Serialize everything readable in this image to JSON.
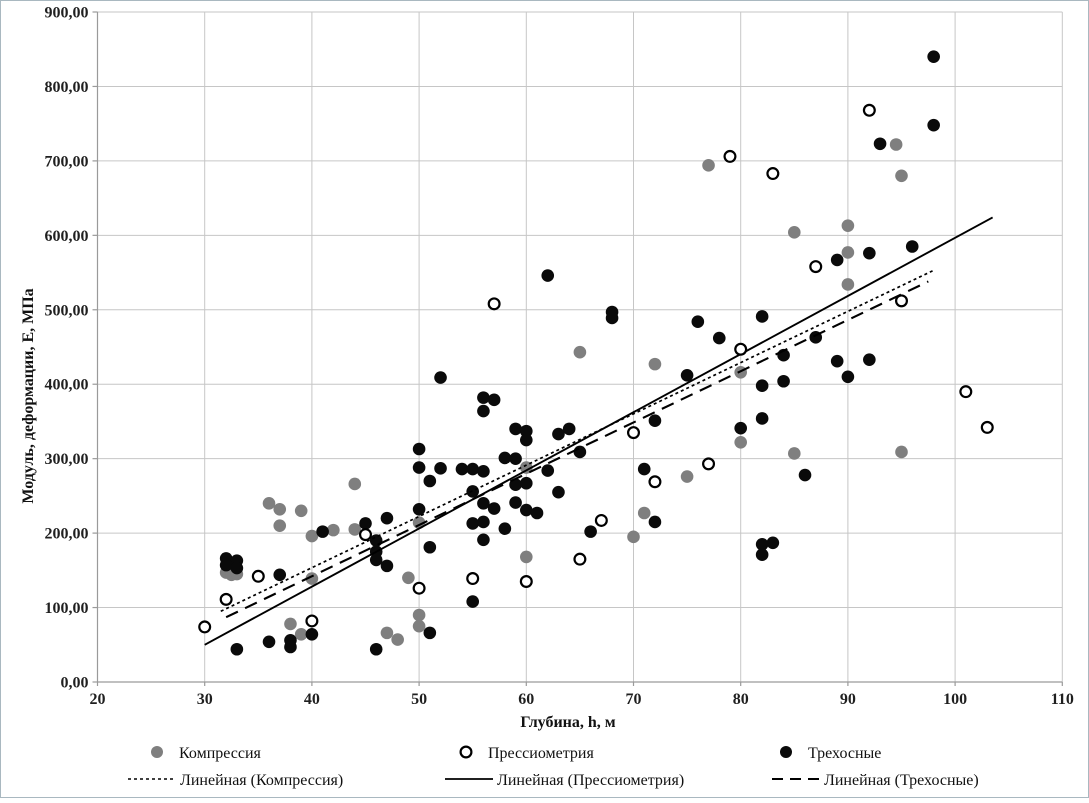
{
  "chart_data": {
    "type": "scatter",
    "title": "",
    "xlabel": "Глубина, h, м",
    "ylabel": "Модуль, деформации, Е, МПа",
    "xlim": [
      20,
      110
    ],
    "ylim": [
      0,
      900
    ],
    "xticks": [
      20,
      30,
      40,
      50,
      60,
      70,
      80,
      90,
      100,
      110
    ],
    "ytick_values": [
      0,
      100,
      200,
      300,
      400,
      500,
      600,
      700,
      800,
      900
    ],
    "ytick_labels": [
      "0,00",
      "100,00",
      "200,00",
      "300,00",
      "400,00",
      "500,00",
      "600,00",
      "700,00",
      "800,00",
      "900,00"
    ],
    "grid": true,
    "legend_position": "bottom",
    "colors": {
      "gray_series": "#7f7f7f",
      "black_series": "#0a0a0a",
      "open_marker_stroke": "#000000",
      "gridline": "#c6c6c6",
      "axis_line": "#9a9a9a",
      "text": "#1f1f1f",
      "page_border": "#a9b8c0"
    },
    "series": [
      {
        "name": "Компрессия",
        "marker": "filled-circle",
        "color": "#7f7f7f",
        "points": [
          [
            32,
            147
          ],
          [
            32.5,
            144
          ],
          [
            33,
            145
          ],
          [
            36,
            240
          ],
          [
            37,
            232
          ],
          [
            39,
            230
          ],
          [
            37,
            210
          ],
          [
            40,
            196
          ],
          [
            42,
            204
          ],
          [
            44,
            205
          ],
          [
            44,
            266
          ],
          [
            38,
            78
          ],
          [
            39,
            64
          ],
          [
            40,
            139
          ],
          [
            47,
            66
          ],
          [
            48,
            57
          ],
          [
            49,
            140
          ],
          [
            50,
            90
          ],
          [
            50,
            75
          ],
          [
            50,
            214
          ],
          [
            60,
            288
          ],
          [
            60,
            168
          ],
          [
            65,
            443
          ],
          [
            70,
            195
          ],
          [
            71,
            227
          ],
          [
            72,
            427
          ],
          [
            75,
            276
          ],
          [
            77,
            694
          ],
          [
            80,
            416
          ],
          [
            80,
            322
          ],
          [
            85,
            307
          ],
          [
            85,
            604
          ],
          [
            90,
            613
          ],
          [
            90,
            577
          ],
          [
            90,
            534
          ],
          [
            94.5,
            722
          ],
          [
            95,
            680
          ],
          [
            95,
            309
          ]
        ]
      },
      {
        "name": "Прессиометрия",
        "marker": "open-circle",
        "color": "#000000",
        "points": [
          [
            30,
            74
          ],
          [
            32,
            111
          ],
          [
            35,
            142
          ],
          [
            40,
            82
          ],
          [
            45,
            198
          ],
          [
            50,
            126
          ],
          [
            55,
            139
          ],
          [
            57,
            508
          ],
          [
            60,
            135
          ],
          [
            65,
            165
          ],
          [
            67,
            217
          ],
          [
            70,
            335
          ],
          [
            72,
            269
          ],
          [
            77,
            293
          ],
          [
            79,
            706
          ],
          [
            80,
            447
          ],
          [
            83,
            683
          ],
          [
            87,
            558
          ],
          [
            92,
            768
          ],
          [
            95,
            512
          ],
          [
            101,
            390
          ],
          [
            103,
            342
          ]
        ]
      },
      {
        "name": "Трехосные",
        "marker": "filled-circle",
        "color": "#0a0a0a",
        "points": [
          [
            32,
            166
          ],
          [
            33,
            163
          ],
          [
            32,
            157
          ],
          [
            33,
            153
          ],
          [
            33,
            44
          ],
          [
            36,
            54
          ],
          [
            37,
            144
          ],
          [
            38,
            56
          ],
          [
            38,
            47
          ],
          [
            40,
            64
          ],
          [
            41,
            202
          ],
          [
            45,
            213
          ],
          [
            46,
            190
          ],
          [
            46,
            175
          ],
          [
            46,
            164
          ],
          [
            47,
            156
          ],
          [
            47,
            220
          ],
          [
            46,
            44
          ],
          [
            50,
            232
          ],
          [
            50,
            288
          ],
          [
            50,
            313
          ],
          [
            51,
            270
          ],
          [
            51,
            181
          ],
          [
            51,
            66
          ],
          [
            52,
            287
          ],
          [
            52,
            409
          ],
          [
            54,
            286
          ],
          [
            55,
            286
          ],
          [
            56,
            283
          ],
          [
            55,
            256
          ],
          [
            55,
            213
          ],
          [
            56,
            215
          ],
          [
            55,
            108
          ],
          [
            56,
            191
          ],
          [
            56,
            240
          ],
          [
            56,
            382
          ],
          [
            57,
            379
          ],
          [
            56,
            364
          ],
          [
            57,
            233
          ],
          [
            58,
            206
          ],
          [
            58,
            301
          ],
          [
            59,
            300
          ],
          [
            59,
            265
          ],
          [
            60,
            267
          ],
          [
            59,
            241
          ],
          [
            59,
            340
          ],
          [
            60,
            337
          ],
          [
            60,
            325
          ],
          [
            60,
            231
          ],
          [
            61,
            227
          ],
          [
            62,
            284
          ],
          [
            62,
            546
          ],
          [
            63,
            255
          ],
          [
            63,
            333
          ],
          [
            64,
            340
          ],
          [
            65,
            309
          ],
          [
            66,
            202
          ],
          [
            68,
            497
          ],
          [
            68,
            489
          ],
          [
            71,
            286
          ],
          [
            72,
            215
          ],
          [
            72,
            351
          ],
          [
            75,
            412
          ],
          [
            76,
            484
          ],
          [
            78,
            462
          ],
          [
            80,
            341
          ],
          [
            82,
            398
          ],
          [
            82,
            354
          ],
          [
            82,
            491
          ],
          [
            84,
            404
          ],
          [
            84,
            439
          ],
          [
            87,
            463
          ],
          [
            89,
            431
          ],
          [
            92,
            433
          ],
          [
            90,
            410
          ],
          [
            89,
            567
          ],
          [
            92,
            576
          ],
          [
            96,
            585
          ],
          [
            82,
            185
          ],
          [
            83,
            187
          ],
          [
            82,
            171
          ],
          [
            86,
            278
          ],
          [
            93,
            723
          ],
          [
            98,
            748
          ],
          [
            98,
            840
          ]
        ]
      }
    ],
    "trendlines": [
      {
        "name": "Линейная (Компрессия)",
        "style": "dotted",
        "from": [
          31.5,
          95
        ],
        "to": [
          98,
          553
        ]
      },
      {
        "name": "Линейная (Прессиометрия)",
        "style": "solid",
        "from": [
          30,
          50
        ],
        "to": [
          103.5,
          624
        ]
      },
      {
        "name": "Линейная (Трехосные)",
        "style": "dashed",
        "from": [
          32,
          87
        ],
        "to": [
          97.5,
          538
        ]
      }
    ]
  }
}
